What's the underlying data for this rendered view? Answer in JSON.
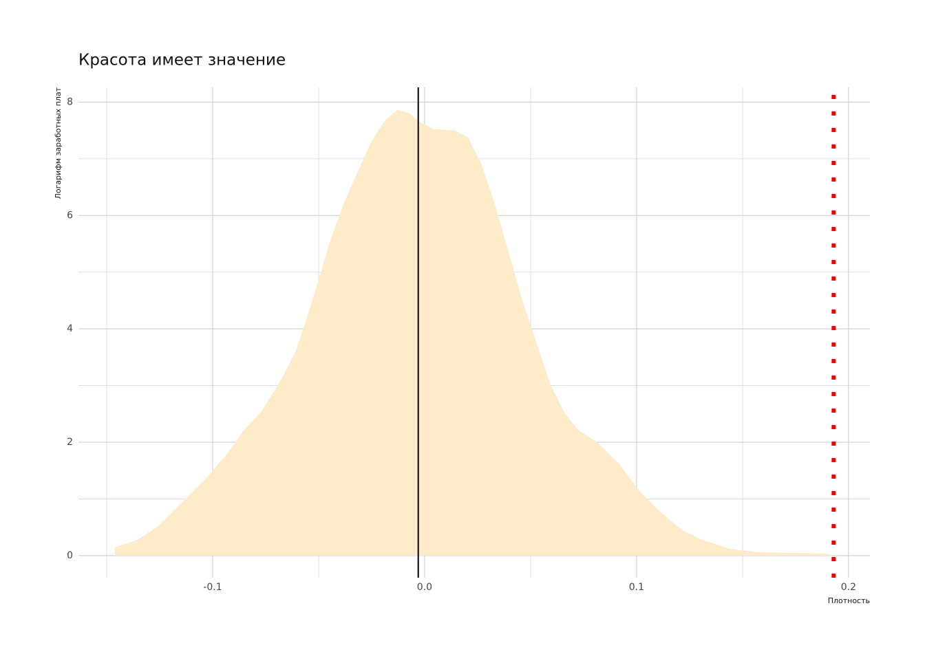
{
  "chart_data": {
    "type": "area",
    "title": "Красота имеет значение",
    "x_label": "Плотность",
    "y_label": "Логарифм заработных плат",
    "color": "#feebca",
    "x": [
      -0.1461,
      -0.1354,
      -0.1256,
      -0.1127,
      -0.1029,
      -0.0932,
      -0.0851,
      -0.0769,
      -0.0672,
      -0.0607,
      -0.0558,
      -0.0503,
      -0.0445,
      -0.038,
      -0.0315,
      -0.025,
      -0.0185,
      -0.0127,
      -0.0071,
      -0.0023,
      0.0042,
      0.014,
      0.0205,
      0.0269,
      0.0334,
      0.0399,
      0.0464,
      0.0529,
      0.0594,
      0.0659,
      0.0724,
      0.0821,
      0.0919,
      0.1016,
      0.1114,
      0.1211,
      0.1308,
      0.1438,
      0.1568,
      0.1731,
      0.1893,
      0.1942
    ],
    "values": [
      0.146,
      0.279,
      0.522,
      1.007,
      1.371,
      1.796,
      2.221,
      2.549,
      3.131,
      3.617,
      4.163,
      4.83,
      5.558,
      6.226,
      6.772,
      7.318,
      7.682,
      7.864,
      7.803,
      7.646,
      7.524,
      7.5,
      7.379,
      6.893,
      6.165,
      5.316,
      4.466,
      3.738,
      3.01,
      2.524,
      2.221,
      1.978,
      1.614,
      1.129,
      0.765,
      0.461,
      0.279,
      0.121,
      0.061,
      0.049,
      0.036,
      0.0
    ],
    "xlim": [
      -0.1633,
      0.2101
    ],
    "ylim": [
      -0.39,
      8.26
    ],
    "xticks": [
      -0.1,
      {
        "value": 0,
        "label": "0.0"
      },
      0.1,
      0.2
    ],
    "yticks": [
      0,
      2,
      4,
      6,
      8
    ],
    "x_minor_ticks": [
      -0.15,
      -0.05,
      0.05,
      0.15
    ],
    "y_minor_ticks": [
      1,
      3,
      5,
      7
    ],
    "grid": true,
    "vlines": [
      {
        "x": -0.003,
        "color": "#000000",
        "style": "solid"
      },
      {
        "x": 0.193,
        "color": "#ee0000",
        "style": "dotted"
      }
    ]
  }
}
